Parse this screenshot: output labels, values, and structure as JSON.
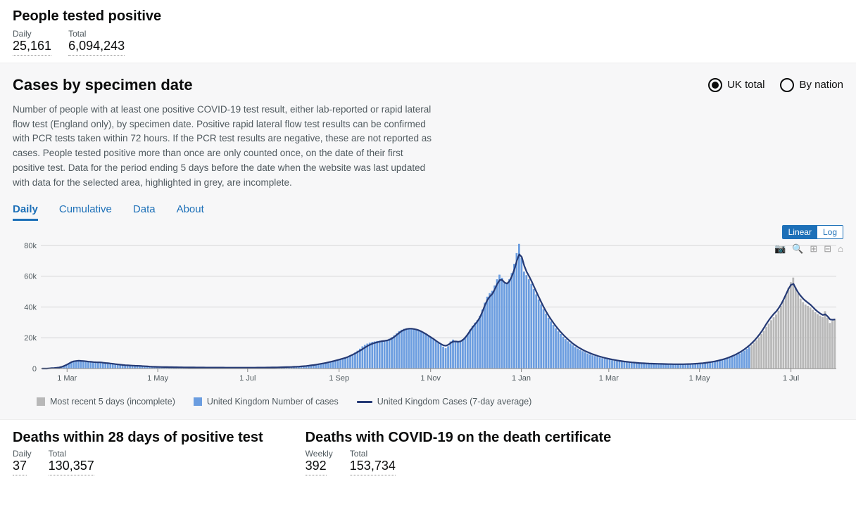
{
  "positives": {
    "title": "People tested positive",
    "daily_label": "Daily",
    "daily_value": "25,161",
    "total_label": "Total",
    "total_value": "6,094,243"
  },
  "chart_section": {
    "title": "Cases by specimen date",
    "radio_uk": "UK total",
    "radio_nation": "By nation",
    "description": "Number of people with at least one positive COVID-19 test result, either lab-reported or rapid lateral flow test (England only), by specimen date. Positive rapid lateral flow test results can be confirmed with PCR tests taken within 72 hours. If the PCR test results are negative, these are not reported as cases. People tested positive more than once are only counted once, on the date of their first positive test. Data for the period ending 5 days before the date when the website was last updated with data for the selected area, highlighted in grey, are incomplete.",
    "tabs": {
      "daily": "Daily",
      "cumulative": "Cumulative",
      "data": "Data",
      "about": "About"
    },
    "scale": {
      "linear": "Linear",
      "log": "Log"
    },
    "legend": {
      "incomplete": "Most recent 5 days (incomplete)",
      "cases": "United Kingdom Number of cases",
      "avg": "United Kingdom Cases (7-day average)"
    }
  },
  "chart": {
    "type": "bar+line",
    "ylim": [
      0,
      85000
    ],
    "yticks": [
      0,
      20000,
      40000,
      60000,
      80000
    ],
    "ytick_labels": [
      "0",
      "20k",
      "40k",
      "60k",
      "80k"
    ],
    "xtick_labels": [
      "1 Mar",
      "1 May",
      "1 Jul",
      "1 Sep",
      "1 Nov",
      "1 Jan",
      "1 Mar",
      "1 May",
      "1 Jul"
    ],
    "xtick_positions": [
      0.033,
      0.147,
      0.26,
      0.375,
      0.49,
      0.604,
      0.714,
      0.828,
      0.943
    ],
    "bar_color": "#6b9de0",
    "incomplete_color": "#b8b8b8",
    "line_color": "#253a75",
    "line_width": 2.2,
    "grid_color": "#d6d6d6",
    "background": "#f7f7f8",
    "bars": [
      0,
      0,
      0,
      150,
      280,
      380,
      500,
      700,
      1100,
      1700,
      2400,
      3300,
      4200,
      4700,
      4950,
      5100,
      5000,
      4900,
      4700,
      4500,
      4400,
      4200,
      4100,
      4050,
      4000,
      3800,
      3600,
      3500,
      3300,
      3100,
      2900,
      2700,
      2500,
      2350,
      2200,
      2100,
      2000,
      1900,
      1850,
      1800,
      1750,
      1600,
      1500,
      1400,
      1300,
      1200,
      1150,
      1100,
      1050,
      1000,
      980,
      950,
      920,
      900,
      880,
      850,
      830,
      810,
      790,
      770,
      750,
      740,
      720,
      700,
      690,
      680,
      670,
      660,
      650,
      640,
      640,
      630,
      630,
      620,
      620,
      610,
      610,
      600,
      600,
      600,
      590,
      590,
      590,
      590,
      600,
      600,
      600,
      610,
      620,
      630,
      640,
      660,
      680,
      700,
      720,
      750,
      780,
      820,
      860,
      900,
      950,
      1000,
      1060,
      1120,
      1200,
      1300,
      1400,
      1550,
      1700,
      1880,
      2080,
      2300,
      2550,
      2820,
      3100,
      3400,
      3720,
      4060,
      4420,
      4800,
      5200,
      5620,
      6060,
      6520,
      7000,
      7700,
      8500,
      9400,
      10400,
      11600,
      12900,
      14400,
      15400,
      16200,
      16800,
      17300,
      17600,
      17900,
      18100,
      18200,
      18100,
      18600,
      19400,
      20400,
      21600,
      22900,
      24300,
      25200,
      25800,
      26100,
      26300,
      26200,
      25900,
      25400,
      24800,
      24100,
      23200,
      22200,
      21100,
      20000,
      19000,
      17800,
      16600,
      15400,
      14200,
      13200,
      14500,
      17600,
      18800,
      17800,
      17200,
      17900,
      19100,
      20600,
      22600,
      25300,
      27800,
      29800,
      31500,
      34300,
      38300,
      42800,
      46700,
      49000,
      50500,
      54000,
      58000,
      61000,
      59000,
      55500,
      55000,
      58000,
      62000,
      68000,
      75000,
      81000,
      72000,
      63000,
      60700,
      58000,
      55000,
      51600,
      48200,
      44900,
      41700,
      38600,
      35700,
      33000,
      30600,
      28300,
      26200,
      24200,
      22400,
      20700,
      19100,
      17700,
      16300,
      15100,
      14000,
      13000,
      12100,
      11300,
      10500,
      9800,
      9200,
      8600,
      8110,
      7640,
      7190,
      6780,
      6400,
      6050,
      5720,
      5410,
      5130,
      4870,
      4630,
      4410,
      4210,
      4030,
      3870,
      3720,
      3590,
      3460,
      3350,
      3250,
      3160,
      3100,
      3040,
      2990,
      2930,
      2880,
      2840,
      2800,
      2760,
      2720,
      2690,
      2660,
      2640,
      2620,
      2610,
      2620,
      2640,
      2670,
      2710,
      2770,
      2840,
      2930,
      3030,
      3150,
      3290,
      3450,
      3640,
      3850,
      4090,
      4360,
      4670,
      5020,
      5410,
      5840,
      6330,
      6870,
      7480,
      8150,
      8900,
      9720,
      10630,
      11640,
      12750,
      13980,
      15340,
      16850,
      18510,
      20350,
      22380,
      24620,
      27080,
      29310,
      31400,
      33320,
      35080,
      37680,
      40670,
      44090,
      47960,
      52310,
      56100,
      59110,
      52800,
      48700,
      45460,
      43140,
      41600,
      40700,
      39570,
      38150,
      36560,
      35400,
      34400,
      33500,
      37300,
      33000,
      29600,
      31000,
      32400
    ],
    "incomplete_start": 290,
    "line7": [
      0,
      0,
      0,
      150,
      280,
      380,
      500,
      700,
      1100,
      1700,
      2400,
      3300,
      4200,
      4700,
      4950,
      5100,
      5000,
      4900,
      4700,
      4500,
      4400,
      4200,
      4100,
      4050,
      4000,
      3800,
      3600,
      3500,
      3300,
      3100,
      2900,
      2700,
      2500,
      2350,
      2200,
      2100,
      2000,
      1900,
      1850,
      1800,
      1750,
      1600,
      1500,
      1400,
      1300,
      1200,
      1150,
      1100,
      1050,
      1000,
      980,
      950,
      920,
      900,
      880,
      850,
      830,
      810,
      790,
      770,
      750,
      740,
      720,
      700,
      690,
      680,
      670,
      660,
      650,
      640,
      640,
      630,
      630,
      620,
      620,
      610,
      610,
      600,
      600,
      600,
      590,
      590,
      590,
      590,
      600,
      600,
      600,
      610,
      620,
      630,
      640,
      660,
      680,
      700,
      720,
      750,
      780,
      820,
      860,
      900,
      950,
      1000,
      1060,
      1120,
      1200,
      1300,
      1400,
      1550,
      1700,
      1880,
      2080,
      2300,
      2550,
      2820,
      3100,
      3400,
      3720,
      4060,
      4420,
      4800,
      5200,
      5620,
      6060,
      6520,
      7000,
      7600,
      8300,
      9100,
      9900,
      10800,
      11700,
      12700,
      13700,
      14700,
      15500,
      16200,
      16700,
      17100,
      17500,
      17800,
      18000,
      18300,
      18800,
      19600,
      20700,
      22000,
      23300,
      24400,
      25200,
      25700,
      25900,
      25900,
      25700,
      25300,
      24800,
      24100,
      23200,
      22300,
      21200,
      20200,
      19200,
      18000,
      16900,
      15900,
      15100,
      14800,
      15500,
      16700,
      17600,
      17600,
      17400,
      17700,
      18700,
      20300,
      22400,
      24800,
      27000,
      29000,
      30900,
      33600,
      37300,
      41400,
      44700,
      46900,
      48600,
      51600,
      55000,
      57500,
      57600,
      55800,
      55200,
      56800,
      60100,
      64600,
      70200,
      74200,
      72500,
      66800,
      62800,
      60000,
      56800,
      53200,
      49700,
      46300,
      43000,
      39800,
      36900,
      34200,
      31800,
      29500,
      27400,
      25400,
      23600,
      21900,
      20300,
      18800,
      17400,
      16100,
      15000,
      13900,
      13000,
      12100,
      11300,
      10600,
      9900,
      9300,
      8760,
      8240,
      7760,
      7320,
      6910,
      6530,
      6180,
      5860,
      5560,
      5280,
      5030,
      4790,
      4580,
      4380,
      4200,
      4030,
      3880,
      3740,
      3620,
      3510,
      3410,
      3330,
      3260,
      3200,
      3140,
      3090,
      3040,
      3000,
      2960,
      2920,
      2890,
      2870,
      2850,
      2830,
      2820,
      2830,
      2850,
      2880,
      2930,
      2990,
      3060,
      3150,
      3260,
      3390,
      3540,
      3720,
      3930,
      4160,
      4430,
      4720,
      5060,
      5430,
      5850,
      6320,
      6850,
      7430,
      8080,
      8800,
      9600,
      10490,
      11470,
      12560,
      13760,
      15080,
      16540,
      18160,
      19950,
      21930,
      24120,
      26530,
      29180,
      31540,
      33660,
      35540,
      37190,
      39360,
      41950,
      44980,
      48350,
      51800,
      54400,
      55000,
      51900,
      49200,
      47100,
      45300,
      43900,
      42700,
      41400,
      39800,
      38200,
      36900,
      35700,
      34800,
      35300,
      33800,
      31900,
      31700,
      31900
    ]
  },
  "deaths28": {
    "title": "Deaths within 28 days of positive test",
    "daily_label": "Daily",
    "daily_value": "37",
    "total_label": "Total",
    "total_value": "130,357"
  },
  "deaths_cert": {
    "title": "Deaths with COVID-19 on the death certificate",
    "weekly_label": "Weekly",
    "weekly_value": "392",
    "total_label": "Total",
    "total_value": "153,734"
  }
}
